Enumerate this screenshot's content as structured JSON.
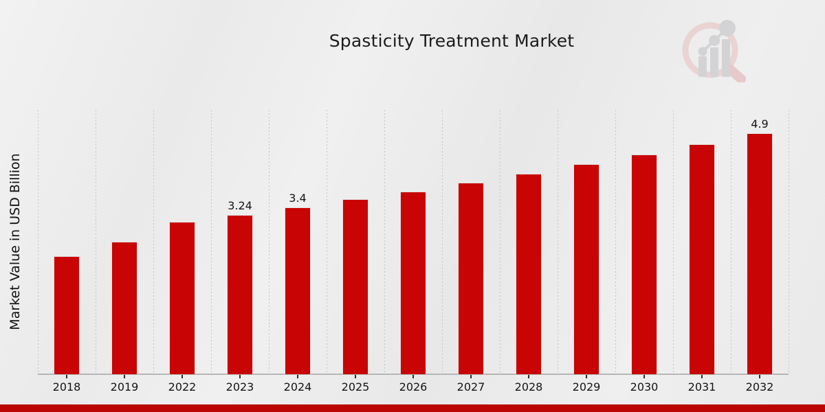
{
  "page": {
    "background_color": "#ebebeb",
    "footer_color": "#bb0505"
  },
  "header": {
    "title": "Spasticity Treatment Market"
  },
  "logo": {
    "name": "magnifier-bar-chart-watermark-logo",
    "ring_color": "#ead3d3",
    "handle_color": "#e6caca",
    "shape_color": "#d3d3d6"
  },
  "chart_data": {
    "type": "bar",
    "title": "Spasticity Treatment Market",
    "xlabel": "",
    "ylabel": "Market Value in USD Billion",
    "categories": [
      "2018",
      "2019",
      "2022",
      "2023",
      "2024",
      "2025",
      "2026",
      "2027",
      "2028",
      "2029",
      "2030",
      "2031",
      "2032"
    ],
    "values": [
      2.4,
      2.7,
      3.1,
      3.24,
      3.4,
      3.56,
      3.72,
      3.9,
      4.08,
      4.27,
      4.47,
      4.68,
      4.9
    ],
    "shown_value_labels": [
      "",
      "",
      "",
      "3.24",
      "3.4",
      "",
      "",
      "",
      "",
      "",
      "",
      "",
      "4.9"
    ],
    "bar_color": "#c90404",
    "ylim": [
      0,
      5.38
    ],
    "grid": "vertical-dotted",
    "gridline_color": "#c3c3c3",
    "axis_line_color": "#b6b6b6",
    "legend": "none"
  }
}
